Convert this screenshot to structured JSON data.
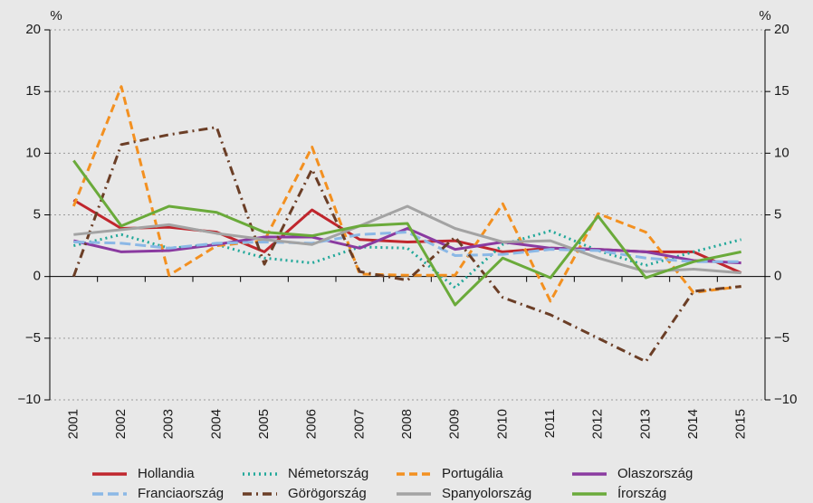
{
  "chart_data": {
    "type": "line",
    "ylabel": "%",
    "y2label": "%",
    "categories": [
      "2001",
      "2002",
      "2003",
      "2004",
      "2005",
      "2006",
      "2007",
      "2008",
      "2009",
      "2010",
      "2011",
      "2012",
      "2013",
      "2014",
      "2015"
    ],
    "ylim": [
      -10,
      20
    ],
    "yticks": [
      {
        "value": -10,
        "label": "−10"
      },
      {
        "value": -5,
        "label": "−5"
      },
      0,
      5,
      10,
      15,
      20
    ],
    "y2lim": [
      -10,
      20
    ],
    "y2ticks": [
      {
        "value": -10,
        "label": "−10"
      },
      {
        "value": -5,
        "label": "−5"
      },
      0,
      5,
      10,
      15,
      20
    ],
    "grid": true,
    "legend": "bottom",
    "series": [
      {
        "name": "Hollandia",
        "color": "#c0262d",
        "dash": "solid",
        "values": [
          6.2,
          3.9,
          4.0,
          3.6,
          2.0,
          5.4,
          3.0,
          2.8,
          2.9,
          2.0,
          2.3,
          2.2,
          2.0,
          2.0,
          0.3
        ]
      },
      {
        "name": "Németország",
        "color": "#22a89a",
        "dash": "dot",
        "values": [
          2.5,
          3.4,
          2.3,
          2.6,
          1.5,
          1.1,
          2.4,
          2.3,
          -0.9,
          2.6,
          3.7,
          2.1,
          0.9,
          2.0,
          3.0
        ]
      },
      {
        "name": "Portugália",
        "color": "#f39020",
        "dash": "dash",
        "values": [
          5.7,
          15.4,
          0.1,
          2.5,
          2.9,
          10.5,
          0.2,
          0.1,
          0.1,
          5.9,
          -2.0,
          5.1,
          3.6,
          -1.3,
          -0.8
        ]
      },
      {
        "name": "Olaszország",
        "color": "#8a3aa0",
        "dash": "solid",
        "values": [
          2.9,
          2.0,
          2.1,
          2.6,
          3.2,
          3.2,
          2.3,
          3.9,
          2.2,
          2.8,
          2.3,
          2.2,
          2.0,
          1.3,
          1.1
        ]
      },
      {
        "name": "Franciaország",
        "color": "#8bb8e6",
        "dash": "longdash",
        "values": [
          2.8,
          2.7,
          2.3,
          2.7,
          2.8,
          2.7,
          3.4,
          3.6,
          1.7,
          1.8,
          2.2,
          2.1,
          1.5,
          1.2,
          1.2
        ]
      },
      {
        "name": "Görögország",
        "color": "#6b3e26",
        "dash": "dashdot",
        "values": [
          0.0,
          10.7,
          11.5,
          12.1,
          1.0,
          8.7,
          0.4,
          -0.3,
          3.2,
          -1.7,
          -3.1,
          -5.0,
          -6.9,
          -1.2,
          -0.8
        ]
      },
      {
        "name": "Spanyolország",
        "color": "#a3a3a3",
        "dash": "solid",
        "values": [
          3.4,
          3.8,
          4.2,
          3.5,
          3.0,
          2.6,
          4.1,
          5.7,
          3.9,
          2.8,
          2.9,
          1.5,
          0.4,
          0.6,
          0.3
        ]
      },
      {
        "name": "Írország",
        "color": "#6aaa3a",
        "dash": "solid",
        "values": [
          9.4,
          4.1,
          5.7,
          5.2,
          3.6,
          3.3,
          4.1,
          4.3,
          -2.3,
          1.5,
          -0.1,
          4.9,
          -0.1,
          1.2,
          2.0
        ]
      }
    ]
  }
}
